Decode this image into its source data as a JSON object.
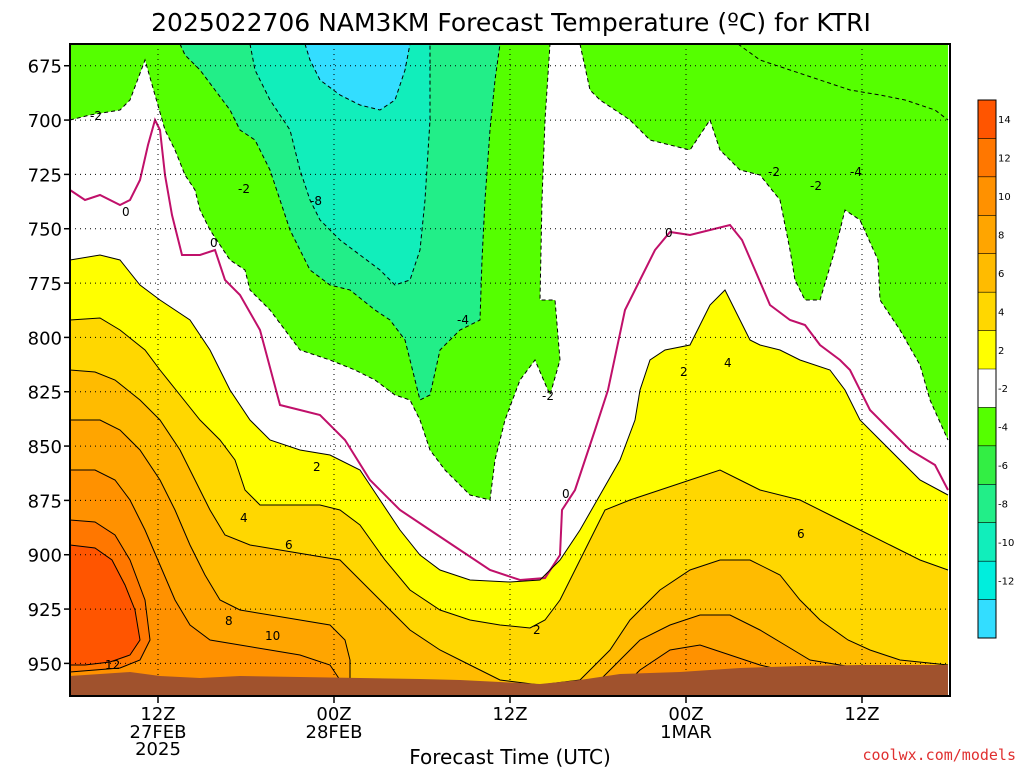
{
  "chart_data": {
    "type": "heatmap",
    "title": "2025022706 NAM3KM Forecast Temperature (ºC) for KTRI",
    "xlabel": "Forecast Time (UTC)",
    "ylabel": "",
    "y_axis": {
      "ticks": [
        675,
        700,
        725,
        750,
        775,
        800,
        825,
        850,
        875,
        900,
        925,
        950
      ],
      "range_top": 665,
      "range_bottom": 965,
      "unit": "hPa"
    },
    "x_axis": {
      "ticks": [
        {
          "hour": 6,
          "label": "12Z",
          "sublabel": "27FEB",
          "sublabel2": "2025"
        },
        {
          "hour": 18,
          "label": "00Z",
          "sublabel": "28FEB",
          "sublabel2": ""
        },
        {
          "hour": 30,
          "label": "12Z",
          "sublabel": "",
          "sublabel2": ""
        },
        {
          "hour": 42,
          "label": "00Z",
          "sublabel": "1MAR",
          "sublabel2": ""
        },
        {
          "hour": 54,
          "label": "12Z",
          "sublabel": "",
          "sublabel2": ""
        }
      ],
      "range_start": 0,
      "range_end": 60
    },
    "colorbar": {
      "ticks": [
        "14",
        "12",
        "10",
        "8",
        "6",
        "4",
        "2",
        "-2",
        "-4",
        "-6",
        "-8",
        "-10",
        "-12"
      ],
      "bands": [
        "#ff5500",
        "#ff7700",
        "#ff9100",
        "#ffa500",
        "#ffbb00",
        "#ffd700",
        "#ffff00",
        "#ffffff",
        "#55ff00",
        "#33ee44",
        "#22ee88",
        "#11eebb",
        "#00eedd",
        "#33ddff"
      ]
    },
    "contour_labels": [
      "-2",
      "-2",
      "-8",
      "0",
      "0",
      "-4",
      "-2",
      "0",
      "0",
      "-2",
      "-2",
      "-4",
      "2",
      "4",
      "2",
      "4",
      "6",
      "6",
      "8",
      "10",
      "12",
      "2",
      "0",
      "2",
      "-2"
    ],
    "colors": {
      "white": "#ffffff",
      "yellow": "#ffff00",
      "gold": "#ffd700",
      "orange": "#ffbb00",
      "dkorange": "#ffa500",
      "red": "#ff9100",
      "redder": "#ff7700",
      "deepred": "#ff5500",
      "green": "#55ff00",
      "teal": "#22ee88",
      "cyan": "#11eebb",
      "cyan2": "#33ddff",
      "ground": "#a0522d",
      "zeroline": "#c0106a"
    }
  },
  "credit": "coolwx.com/models"
}
